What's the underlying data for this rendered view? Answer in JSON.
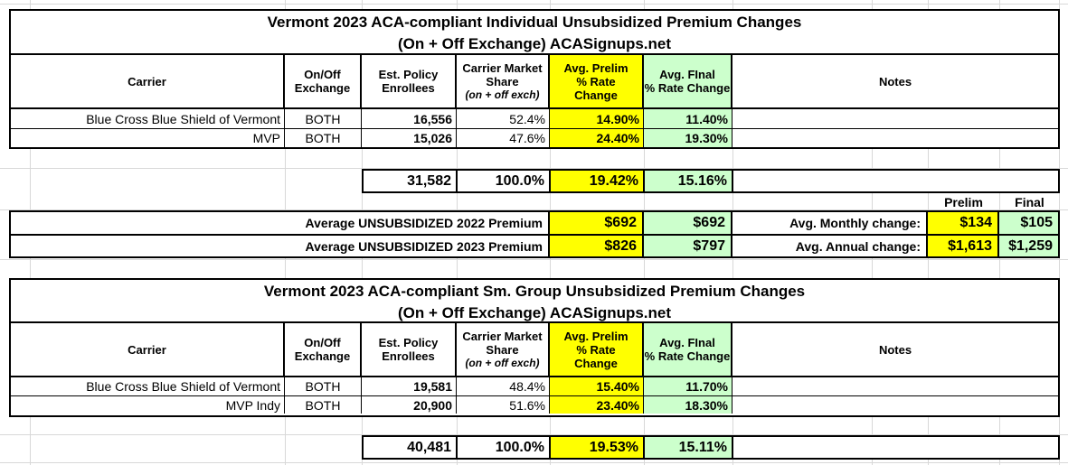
{
  "colors": {
    "yellow": "#FFFF00",
    "green": "#CCFFCC",
    "grid": "#D8D8D8",
    "border": "#000000"
  },
  "tables": [
    {
      "title_line1": "Vermont 2023 ACA-compliant Individual Unsubsidized Premium Changes",
      "title_line2": "(On + Off Exchange) ACASignups.net",
      "headers": {
        "carrier": "Carrier",
        "exchange": [
          "On/Off",
          "Exchange"
        ],
        "enrollees": [
          "Est. Policy",
          "Enrollees"
        ],
        "share": [
          "Carrier Market",
          "Share"
        ],
        "share_note": "(on + off exch)",
        "prelim": [
          "Avg. Prelim",
          "% Rate",
          "Change"
        ],
        "final": [
          "Avg. FInal",
          "% Rate Change"
        ],
        "notes": "Notes"
      },
      "rows": [
        {
          "carrier": "Blue Cross Blue Shield of Vermont",
          "exchange": "BOTH",
          "enrollees": "16,556",
          "share": "52.4%",
          "prelim": "14.90%",
          "final": "11.40%",
          "notes": ""
        },
        {
          "carrier": "MVP",
          "exchange": "BOTH",
          "enrollees": "15,026",
          "share": "47.6%",
          "prelim": "24.40%",
          "final": "19.30%",
          "notes": ""
        }
      ],
      "totals": {
        "enrollees": "31,582",
        "share": "100.0%",
        "prelim": "19.42%",
        "final": "15.16%",
        "notes": ""
      }
    },
    {
      "title_line1": "Vermont 2023 ACA-compliant Sm. Group Unsubsidized Premium Changes",
      "title_line2": "(On + Off Exchange) ACASignups.net",
      "headers": {
        "carrier": "Carrier",
        "exchange": [
          "On/Off",
          "Exchange"
        ],
        "enrollees": [
          "Est. Policy",
          "Enrollees"
        ],
        "share": [
          "Carrier Market",
          "Share"
        ],
        "share_note": "(on + off exch)",
        "prelim": [
          "Avg. Prelim",
          "% Rate",
          "Change"
        ],
        "final": [
          "Avg. FInal",
          "% Rate Change"
        ],
        "notes": "Notes"
      },
      "rows": [
        {
          "carrier": "Blue Cross Blue Shield of Vermont",
          "exchange": "BOTH",
          "enrollees": "19,581",
          "share": "48.4%",
          "prelim": "15.40%",
          "final": "11.70%",
          "notes": ""
        },
        {
          "carrier": "MVP Indy",
          "exchange": "BOTH",
          "enrollees": "20,900",
          "share": "51.6%",
          "prelim": "23.40%",
          "final": "18.30%",
          "notes": ""
        }
      ],
      "totals": {
        "enrollees": "40,481",
        "share": "100.0%",
        "prelim": "19.53%",
        "final": "15.11%",
        "notes": ""
      }
    }
  ],
  "premium_section": {
    "col_labels": {
      "prelim": "Prelim",
      "final": "Final"
    },
    "rows": [
      {
        "label": "Average UNSUBSIDIZED 2022 Premium",
        "prelim": "$692",
        "final": "$692",
        "change_label": "Avg. Monthly change:",
        "change_prelim": "$134",
        "change_final": "$105"
      },
      {
        "label": "Average UNSUBSIDIZED 2023 Premium",
        "prelim": "$826",
        "final": "$797",
        "change_label": "Avg. Annual change:",
        "change_prelim": "$1,613",
        "change_final": "$1,259"
      }
    ]
  }
}
